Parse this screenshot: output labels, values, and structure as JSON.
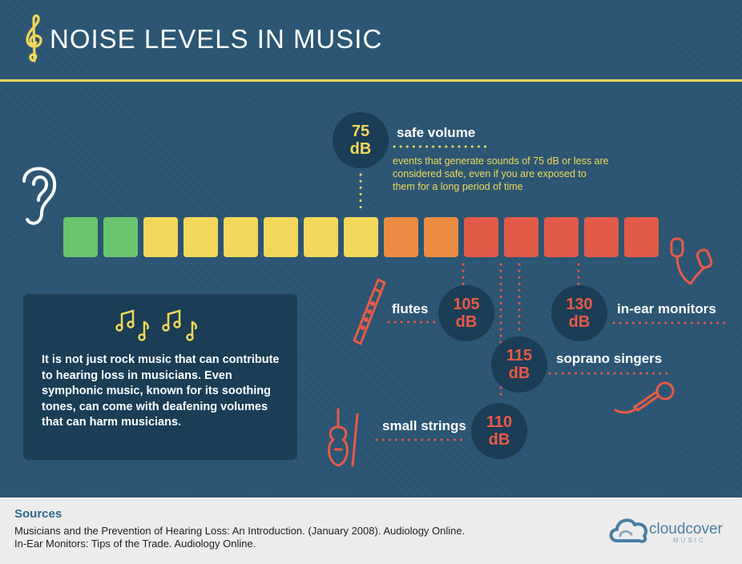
{
  "header": {
    "title": "NOISE LEVELS IN MUSIC"
  },
  "colors": {
    "background": "#2b5572",
    "title_rule": "#f2d75a",
    "green": "#6cc36d",
    "yellow": "#f2d75a",
    "orange": "#ec8c43",
    "red": "#e25a48",
    "circle_fill": "#1b3d55",
    "info_box": "#1b3d55",
    "icon_line": "#e85a47",
    "sources_bar": "#ececec"
  },
  "scale": {
    "segments": [
      "green",
      "green",
      "yellow",
      "yellow",
      "yellow",
      "yellow",
      "yellow",
      "yellow",
      "orange",
      "orange",
      "red",
      "red",
      "red",
      "red",
      "red"
    ]
  },
  "markers": {
    "safe": {
      "value": "75",
      "unit": "dB",
      "label": "safe volume",
      "description": "events that generate sounds of 75 dB or less are considered safe, even if you are exposed to them for a long period of time"
    },
    "flutes": {
      "value": "105",
      "unit": "dB",
      "label": "flutes"
    },
    "small_strings": {
      "value": "110",
      "unit": "dB",
      "label": "small strings"
    },
    "soprano_singers": {
      "value": "115",
      "unit": "dB",
      "label": "soprano singers"
    },
    "in_ear_monitors": {
      "value": "130",
      "unit": "dB",
      "label": "in-ear monitors"
    }
  },
  "info": {
    "icon": "music-notes-icon",
    "text": "It is not just rock music that can contribute to hearing loss in musicians. Even symphonic music, known for its soothing tones, can come with deafening volumes that can harm musicians."
  },
  "icons": [
    "treble-clef-icon",
    "ear-icon",
    "earbuds-icon",
    "recorder-flute-icon",
    "violin-icon",
    "microphone-icon",
    "cloud-logo-icon"
  ],
  "sources": {
    "title": "Sources",
    "items": [
      "Musicians and the Prevention of Hearing Loss: An Introduction. (January 2008). Audiology Online.",
      "In-Ear Monitors: Tips of the Trade. Audiology Online."
    ]
  },
  "brand": {
    "name": "cloudcover",
    "sub": "MUSIC"
  }
}
